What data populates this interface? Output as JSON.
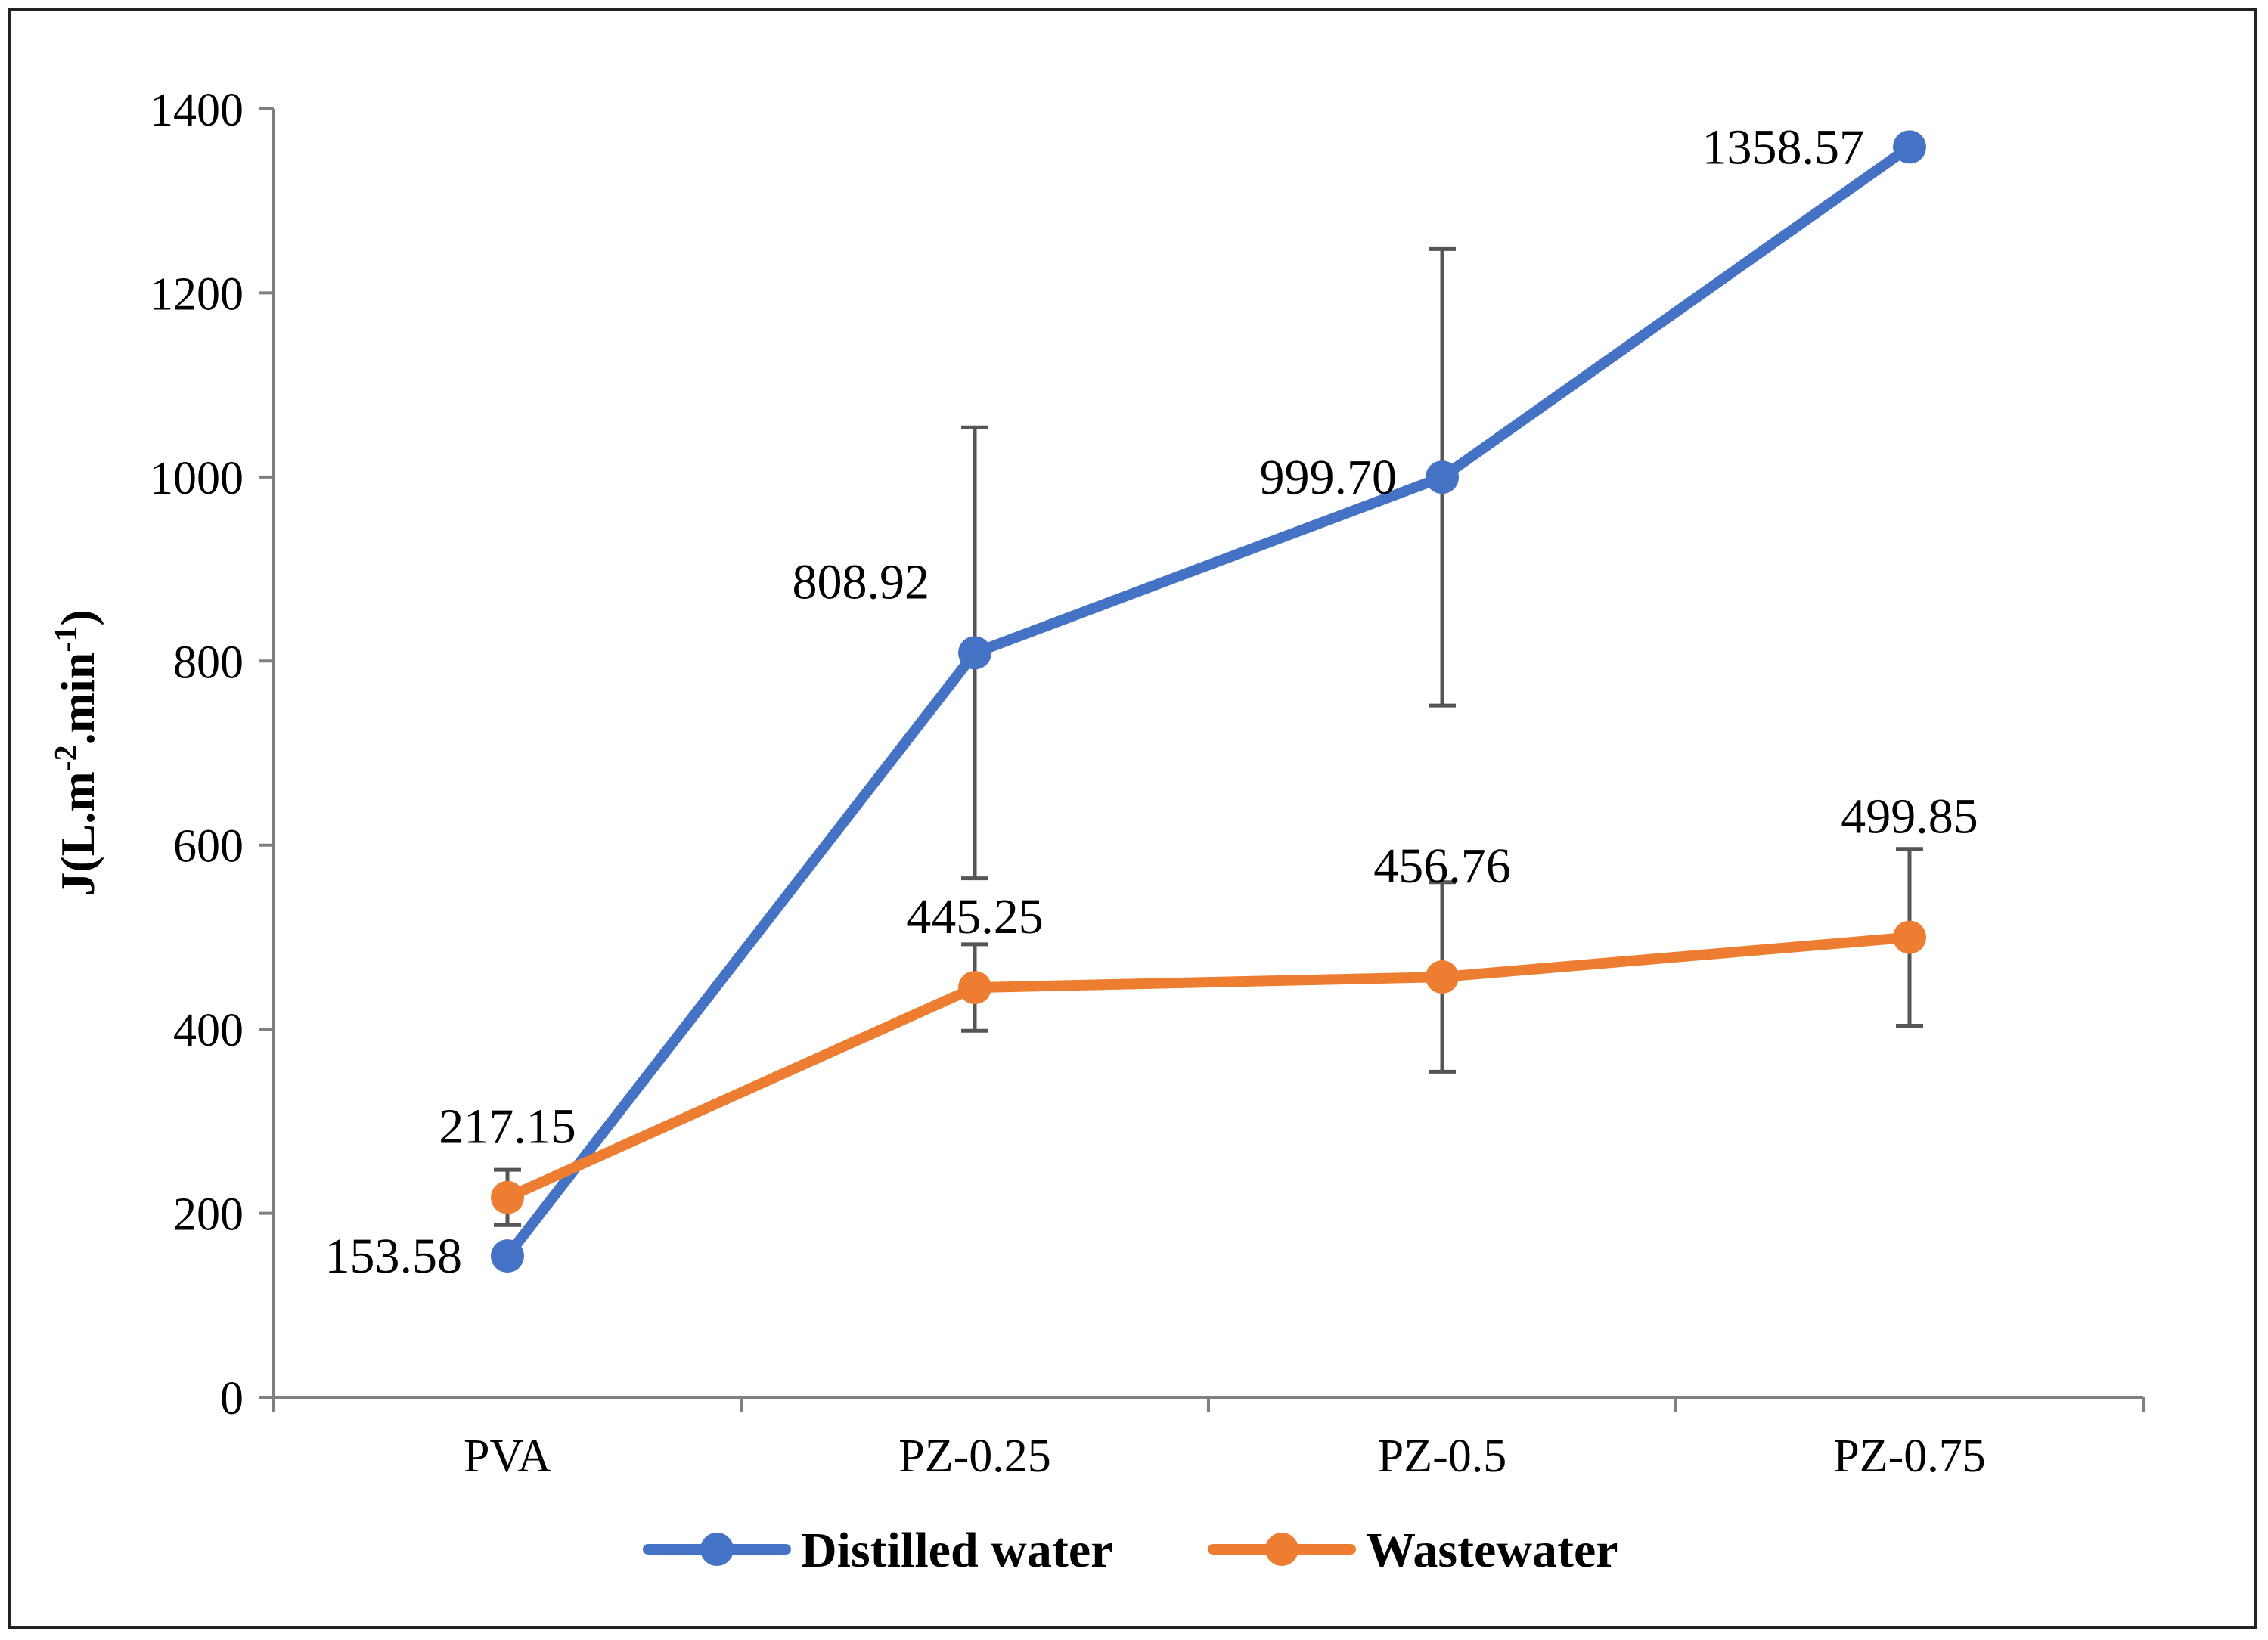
{
  "chart_data": {
    "type": "line",
    "title": "",
    "xlabel": "",
    "ylabel": "J(L.m-2.min-1)",
    "ylabel_parts": {
      "base": "J(L.m",
      "exp1": "-2",
      "mid": ".min",
      "exp2": "-1",
      "end": ")"
    },
    "categories": [
      "PVA",
      "PZ-0.25",
      "PZ-0.5",
      "PZ-0.75"
    ],
    "ylim": [
      0,
      1400
    ],
    "yticks": [
      0,
      200,
      400,
      600,
      800,
      1000,
      1200,
      1400
    ],
    "grid": false,
    "legend_position": "bottom",
    "series": [
      {
        "name": "Distilled water",
        "color": "#4472C4",
        "values": [
          153.58,
          808.92,
          999.7,
          1358.57
        ],
        "labels": [
          "153.58",
          "808.92",
          "999.70",
          "1358.57"
        ],
        "error": [
          null,
          245,
          248,
          null
        ]
      },
      {
        "name": "Wastewater",
        "color": "#ED7D31",
        "values": [
          217.15,
          445.25,
          456.76,
          499.85
        ],
        "labels": [
          "217.15",
          "445.25",
          "456.76",
          "499.85"
        ],
        "error": [
          30,
          47,
          103,
          96
        ]
      }
    ]
  }
}
